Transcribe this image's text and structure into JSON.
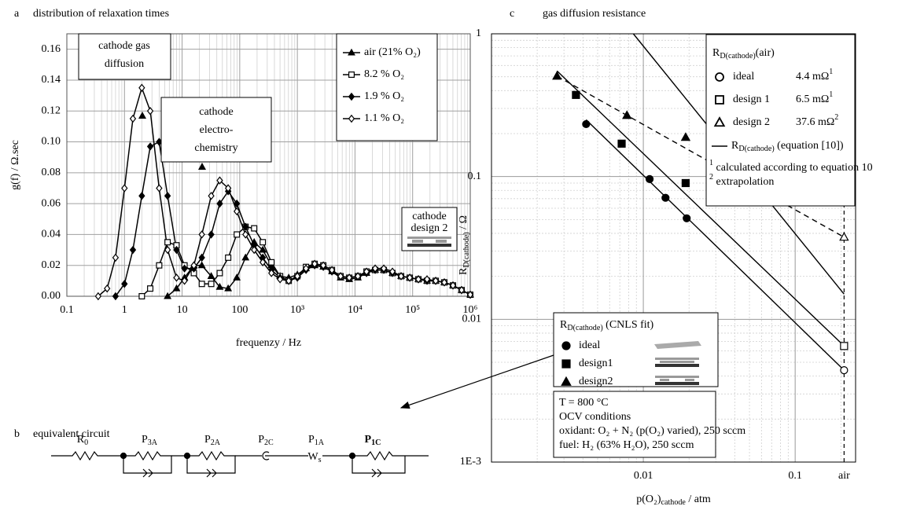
{
  "chart_data": [
    {
      "type": "line",
      "panel": "a",
      "title": "distribution of relaxation times",
      "x_label": "frequenzy / Hz",
      "y_label": "g(f) / Ω.sec",
      "x_scale": "log",
      "grid": true,
      "minor_grid": true,
      "legend": "upper-right",
      "xlim": [
        0.1,
        1000000
      ],
      "ylim": [
        0,
        0.17
      ],
      "xticks": [
        0.1,
        1,
        10,
        100,
        {
          "value": 1000,
          "label": "10³"
        },
        {
          "value": 10000,
          "label": "10⁴"
        },
        {
          "value": 100000,
          "label": "10⁵"
        },
        {
          "value": 1000000,
          "label": "10⁶"
        }
      ],
      "yticks": [
        {
          "value": 0,
          "label": "0.00"
        },
        {
          "value": 0.02,
          "label": "0.02"
        },
        {
          "value": 0.04,
          "label": "0.04"
        },
        {
          "value": 0.06,
          "label": "0.06"
        },
        {
          "value": 0.08,
          "label": "0.08"
        },
        {
          "value": 0.1,
          "label": "0.10"
        },
        {
          "value": 0.12,
          "label": "0.12"
        },
        {
          "value": 0.14,
          "label": "0.14"
        },
        {
          "value": 0.16,
          "label": "0.16"
        }
      ],
      "x": [
        0.35,
        0.5,
        0.7,
        1,
        1.4,
        2,
        2.8,
        4,
        5.6,
        8,
        11,
        16,
        22,
        32,
        45,
        63,
        89,
        126,
        178,
        251,
        355,
        501,
        708,
        1000,
        1413,
        1995,
        2818,
        3981,
        5623,
        7943,
        11220,
        15849,
        22387,
        31623,
        44668,
        63096,
        89125,
        125893,
        177828,
        251189,
        354813,
        501187,
        707946,
        1000000
      ],
      "series": [
        {
          "name": "air (21% O₂)",
          "color": "#000000",
          "marker": "triangle",
          "filled": true,
          "values": [
            null,
            null,
            null,
            null,
            null,
            null,
            null,
            null,
            0,
            0.005,
            0.012,
            0.02,
            0.02,
            0.013,
            0.006,
            0.005,
            0.012,
            0.025,
            0.035,
            0.03,
            0.02,
            0.013,
            0.012,
            0.014,
            0.018,
            0.02,
            0.019,
            0.016,
            0.012,
            0.011,
            0.012,
            0.015,
            0.017,
            0.017,
            0.015,
            0.013,
            0.012,
            0.011,
            0.01,
            0.01,
            0.009,
            0.007,
            0.004,
            0.001
          ]
        },
        {
          "name": "8.2 % O₂",
          "color": "#000000",
          "marker": "square",
          "filled": false,
          "values": [
            null,
            null,
            null,
            null,
            null,
            0,
            0.005,
            0.02,
            0.035,
            0.033,
            0.02,
            0.015,
            0.008,
            0.008,
            0.015,
            0.025,
            0.04,
            0.045,
            0.044,
            0.035,
            0.022,
            0.013,
            0.01,
            0.013,
            0.019,
            0.021,
            0.02,
            0.017,
            0.013,
            0.012,
            0.013,
            0.016,
            0.017,
            0.017,
            0.015,
            0.013,
            0.012,
            0.011,
            0.01,
            0.01,
            0.009,
            0.007,
            0.004,
            0.001
          ]
        },
        {
          "name": "1.9 % O₂",
          "color": "#000000",
          "marker": "diamond",
          "filled": true,
          "values": [
            null,
            null,
            0,
            0.008,
            0.03,
            0.065,
            0.097,
            0.1,
            0.065,
            0.03,
            0.018,
            0.018,
            0.025,
            0.04,
            0.06,
            0.068,
            0.06,
            0.045,
            0.033,
            0.025,
            0.017,
            0.012,
            0.01,
            0.012,
            0.017,
            0.02,
            0.019,
            0.016,
            0.013,
            0.012,
            0.013,
            0.015,
            0.017,
            0.017,
            0.015,
            0.013,
            0.012,
            0.011,
            0.01,
            0.01,
            0.009,
            0.007,
            0.004,
            0.001
          ]
        },
        {
          "name": "1.1 % O₂",
          "color": "#000000",
          "marker": "diamond",
          "filled": false,
          "values": [
            0,
            0.005,
            0.025,
            0.07,
            0.115,
            0.135,
            0.12,
            0.07,
            0.03,
            0.012,
            0.01,
            0.02,
            0.04,
            0.065,
            0.075,
            0.07,
            0.055,
            0.04,
            0.03,
            0.022,
            0.015,
            0.011,
            0.01,
            0.013,
            0.018,
            0.021,
            0.02,
            0.017,
            0.013,
            0.012,
            0.013,
            0.016,
            0.018,
            0.018,
            0.016,
            0.013,
            0.012,
            0.011,
            0.011,
            0.01,
            0.009,
            0.007,
            0.004,
            0.001
          ]
        }
      ],
      "annotations": [
        {
          "lines": [
            "cathode gas",
            "diffusion"
          ]
        },
        {
          "lines": [
            "cathode",
            "electro-",
            "chemistry"
          ]
        },
        {
          "lines": [
            "cathode",
            "design 2"
          ]
        }
      ]
    },
    {
      "type": "scatter",
      "panel": "c",
      "title": "gas diffusion resistance",
      "x_label": [
        "p(O₂)",
        {
          "sub": "cathode"
        },
        " / atm"
      ],
      "y_label": [
        "R",
        {
          "sub": "D(cathode)"
        },
        " / Ω"
      ],
      "x_scale": "log",
      "y_scale": "log",
      "grid": true,
      "minor_grid": true,
      "xlim": [
        0.001,
        0.25
      ],
      "ylim": [
        0.001,
        1
      ],
      "xticks": [
        0.01,
        0.1,
        {
          "value": 0.21,
          "label": "air"
        }
      ],
      "yticks": [
        1,
        0.1,
        0.01,
        {
          "value": 0.001,
          "label": "1E-3"
        }
      ],
      "legend_title": [
        "R",
        {
          "sub": "D(cathode)"
        },
        " (CNLS fit)"
      ],
      "series": [
        {
          "name": "ideal",
          "color": "#000000",
          "marker": "circle",
          "x": [
            0.0042,
            0.011,
            0.014,
            0.0193
          ],
          "values": [
            0.233,
            0.096,
            0.071,
            0.051
          ]
        },
        {
          "name": "design1",
          "color": "#000000",
          "marker": "square",
          "x": [
            0.0036,
            0.0072,
            0.019
          ],
          "values": [
            0.373,
            0.17,
            0.09
          ]
        },
        {
          "name": "design2",
          "color": "#000000",
          "marker": "triangle",
          "x": [
            0.0027,
            0.0078,
            0.019
          ],
          "values": [
            0.505,
            0.268,
            0.188
          ]
        }
      ],
      "fit_lines": [
        {
          "style": "solid",
          "x": [
            0.0042,
            0.21
          ],
          "values": [
            0.25,
            0.0044
          ]
        },
        {
          "style": "solid",
          "x": [
            0.0027,
            0.21
          ],
          "values": [
            0.55,
            0.0065
          ]
        },
        {
          "style": "solid",
          "x": [
            0.0086,
            0.21
          ],
          "values": [
            1,
            0.015
          ]
        },
        {
          "style": "dashed",
          "x": [
            0.0027,
            0.21
          ],
          "values": [
            0.505,
            0.0376
          ]
        }
      ],
      "air_legend_title": [
        "R",
        {
          "sub": "D(cathode)"
        },
        "(air)"
      ],
      "air_points": [
        {
          "name": "ideal",
          "marker": "circle",
          "x": 0.21,
          "value": 0.0044,
          "value_label": [
            "4.4 mΩ",
            {
              "sup": "1"
            }
          ]
        },
        {
          "name": "design 1",
          "marker": "square",
          "x": 0.21,
          "value": 0.0065,
          "value_label": [
            "6.5 mΩ",
            {
              "sup": "1"
            }
          ]
        },
        {
          "name": "design 2",
          "marker": "triangle",
          "x": 0.21,
          "value": 0.0376,
          "value_label": [
            "37.6 mΩ",
            {
              "sup": "2"
            }
          ]
        }
      ],
      "line_label": [
        "R",
        {
          "sub": "D(cathode)"
        },
        " (equation [10])"
      ],
      "footnotes": [
        [
          {
            "sup": "1"
          },
          " calculated according to equation 10"
        ],
        [
          {
            "sup": "2"
          },
          " extrapolation"
        ]
      ],
      "conditions": [
        "T = 800 °C",
        "OCV conditions",
        "oxidant: O₂ + N₂ (p(O₂) varied), 250 sccm",
        "fuel: H₂ (63% H₂O), 250 sccm"
      ]
    }
  ],
  "circuit": {
    "panel": "b",
    "title": "equivalent circuit",
    "elements": [
      {
        "label": [
          "R",
          {
            "sub": "0"
          }
        ]
      },
      {
        "label": [
          "P",
          {
            "sub": "3A"
          }
        ]
      },
      {
        "label": [
          "P",
          {
            "sub": "2A"
          }
        ]
      },
      {
        "label": [
          "P",
          {
            "sub": "2C"
          }
        ]
      },
      {
        "label": [
          "P",
          {
            "sub": "1A"
          }
        ]
      },
      {
        "label": [
          "P",
          {
            "sub": "1C"
          }
        ],
        "bold": true
      }
    ],
    "warburg_symbol": [
      "W",
      {
        "sub": "s"
      }
    ]
  }
}
